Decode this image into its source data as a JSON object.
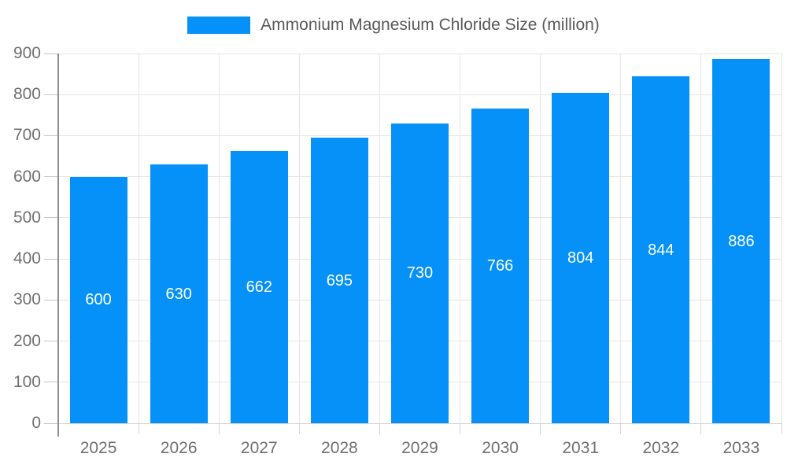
{
  "chart_data": {
    "type": "bar",
    "title": "Ammonium Magnesium Chloride Size (million)",
    "categories": [
      "2025",
      "2026",
      "2027",
      "2028",
      "2029",
      "2030",
      "2031",
      "2032",
      "2033"
    ],
    "values": [
      600,
      630,
      662,
      695,
      730,
      766,
      804,
      844,
      886
    ],
    "series": [
      {
        "name": "Ammonium Magnesium Chloride Size (million)",
        "values": [
          600,
          630,
          662,
          695,
          730,
          766,
          804,
          844,
          886
        ]
      }
    ],
    "xlabel": "",
    "ylabel": "",
    "ylim": [
      0,
      900
    ],
    "y_tick_step": 100,
    "y_tick_labels": [
      "0",
      "100",
      "200",
      "300",
      "400",
      "500",
      "600",
      "700",
      "800",
      "900"
    ],
    "grid": true,
    "legend_position": "top-center",
    "data_labels_position": "inside-center"
  },
  "legend": {
    "items": [
      {
        "label": "Ammonium Magnesium Chloride Size (million)",
        "color": "#0591f7"
      }
    ]
  },
  "colors": {
    "bar": "#0591f7",
    "bar_label": "#ffffff",
    "grid": "#e6e6e6",
    "axis": "#8f8f8f",
    "axis_light": "#d4d4d4",
    "y_tick": "#c6c6c6",
    "x_tick": "#d4d4d4",
    "axis_text": "#707070",
    "legend_text": "#595959",
    "background": "#ffffff"
  }
}
